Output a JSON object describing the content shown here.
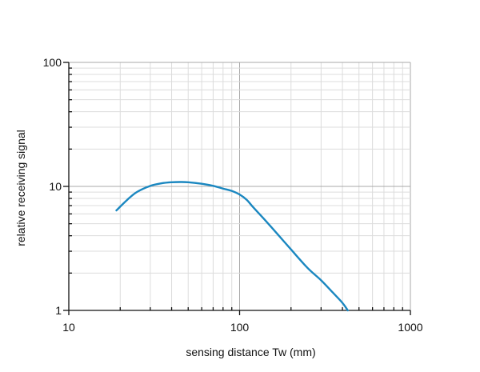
{
  "chart_data": {
    "type": "line",
    "title": "",
    "xlabel": "sensing distance Tw (mm)",
    "ylabel": "relative receiving signal",
    "xscale": "log",
    "yscale": "log",
    "xlim": [
      10,
      1000
    ],
    "ylim": [
      1,
      100
    ],
    "x_ticks": [
      "10",
      "100",
      "1000"
    ],
    "y_ticks": [
      "1",
      "10",
      "100"
    ],
    "grid": true,
    "legend": "none",
    "series": [
      {
        "color": "#1a87c0",
        "x": [
          19,
          22,
          25,
          30,
          35,
          40,
          45,
          50,
          60,
          70,
          80,
          90,
          100,
          110,
          120,
          140,
          170,
          200,
          250,
          300,
          350,
          400,
          430
        ],
        "y": [
          6.4,
          7.8,
          9.0,
          10.1,
          10.6,
          10.8,
          10.85,
          10.8,
          10.5,
          10.1,
          9.6,
          9.2,
          8.6,
          7.8,
          6.8,
          5.4,
          4.0,
          3.1,
          2.2,
          1.75,
          1.4,
          1.15,
          1.0
        ]
      }
    ]
  }
}
